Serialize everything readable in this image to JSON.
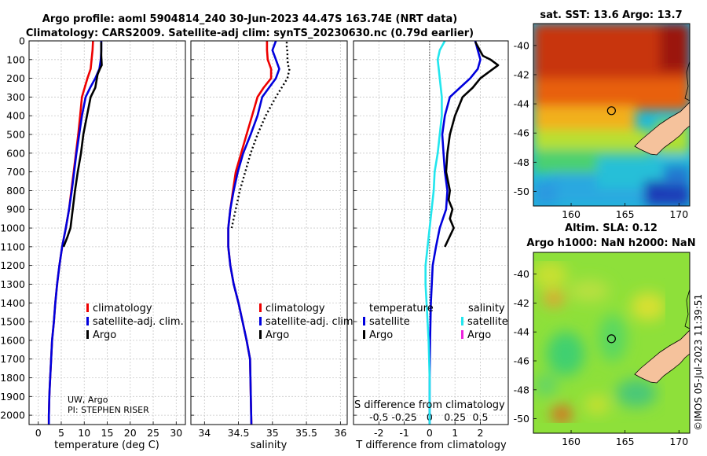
{
  "header": {
    "title_line1": "Argo profile: aoml 5904814_240 30-Jun-2023 44.47S 163.74E (NRT data)",
    "title_line2": "Climatology: CARS2009. Satellite-adj clim: synTS_20230630.nc (0.79d earlier)"
  },
  "colors": {
    "climatology": "#ee0000",
    "satellite_adj": "#0000dd",
    "argo": "#000000",
    "s_satellite": "#22e6ee",
    "s_argo": "#ee22dd"
  },
  "attribution": {
    "line1": "UW, Argo",
    "line2": "PI: STEPHEN RISER"
  },
  "timestamp": "©IMOS 05-Jul-2023 11:39:51",
  "depth_ticks": [
    "0",
    "100",
    "200",
    "300",
    "400",
    "500",
    "600",
    "700",
    "800",
    "900",
    "1000",
    "1100",
    "1200",
    "1300",
    "1400",
    "1500",
    "1600",
    "1700",
    "1800",
    "1900",
    "2000"
  ],
  "chart_data": [
    {
      "id": "temperature-profile",
      "type": "line",
      "xlabel": "temperature (deg C)",
      "ylabel": "depth",
      "xlim": [
        -2,
        32
      ],
      "ylim": [
        2050,
        0
      ],
      "xticks": [
        0,
        5,
        10,
        15,
        20,
        25,
        30
      ],
      "xtick_labels": [
        "0",
        "5",
        "10",
        "15",
        "20",
        "25",
        "30"
      ],
      "legend": [
        "climatology",
        "satellite-adj. clim.",
        "Argo"
      ],
      "series": [
        {
          "name": "climatology",
          "color": "#ee0000",
          "style": "solid",
          "x": [
            11.9,
            11.8,
            11.6,
            11.4,
            10.7,
            10.1,
            9.5,
            9.1,
            8.7,
            8.2,
            7.7,
            7.2,
            6.7,
            6.0,
            5.2,
            4.6,
            4.1,
            3.7,
            3.4,
            3.0,
            2.8,
            2.6,
            2.5,
            2.4,
            2.3,
            2.3
          ],
          "y": [
            0,
            50,
            100,
            150,
            200,
            250,
            300,
            400,
            500,
            600,
            700,
            800,
            900,
            1000,
            1100,
            1200,
            1300,
            1400,
            1500,
            1600,
            1700,
            1800,
            1850,
            1900,
            2000,
            2050
          ]
        },
        {
          "name": "satellite-adj. clim.",
          "color": "#0000dd",
          "style": "solid",
          "x": [
            13.7,
            13.7,
            13.6,
            13.3,
            12.4,
            11.3,
            10.3,
            9.5,
            8.9,
            8.3,
            7.8,
            7.3,
            6.7,
            6.0,
            5.2,
            4.6,
            4.1,
            3.7,
            3.4,
            3.0,
            2.8,
            2.6,
            2.5,
            2.4,
            2.3,
            2.3
          ],
          "y": [
            0,
            50,
            100,
            150,
            200,
            250,
            300,
            400,
            500,
            600,
            700,
            800,
            900,
            1000,
            1100,
            1200,
            1300,
            1400,
            1500,
            1600,
            1700,
            1800,
            1850,
            1900,
            2000,
            2050
          ]
        },
        {
          "name": "Argo",
          "color": "#000000",
          "style": "solid",
          "x": [
            13.7,
            13.7,
            13.7,
            13.8,
            13.4,
            12.9,
            12.4,
            11.4,
            10.6,
            9.8,
            9.3,
            8.6,
            8.0,
            7.5,
            7.0,
            6.3,
            5.5
          ],
          "y": [
            5,
            30,
            80,
            130,
            150,
            180,
            250,
            300,
            400,
            500,
            600,
            700,
            800,
            900,
            1000,
            1050,
            1100
          ]
        }
      ]
    },
    {
      "id": "salinity-profile",
      "type": "line",
      "xlabel": "salinity",
      "ylabel": "depth",
      "xlim": [
        33.8,
        36.1
      ],
      "ylim": [
        2050,
        0
      ],
      "xticks": [
        34,
        34.5,
        35,
        35.5,
        36
      ],
      "xtick_labels": [
        "34",
        "34.5",
        "35",
        "35.5",
        "36"
      ],
      "legend": [
        "climatology",
        "satellite-adj. clim.",
        "Argo"
      ],
      "series": [
        {
          "name": "climatology",
          "color": "#ee0000",
          "style": "solid",
          "x": [
            34.92,
            34.92,
            34.93,
            34.98,
            34.98,
            34.87,
            34.78,
            34.7,
            34.62,
            34.54,
            34.46,
            34.42,
            34.38,
            34.35,
            34.35,
            34.38,
            34.43,
            34.5,
            34.56,
            34.62,
            34.67,
            34.69
          ],
          "y": [
            0,
            50,
            100,
            150,
            200,
            250,
            300,
            400,
            500,
            600,
            700,
            800,
            900,
            1000,
            1100,
            1200,
            1300,
            1400,
            1500,
            1600,
            1700,
            2050
          ]
        },
        {
          "name": "satellite-adj. clim.",
          "color": "#0000dd",
          "style": "solid",
          "x": [
            35.05,
            35.0,
            35.05,
            35.1,
            35.05,
            34.95,
            34.85,
            34.78,
            34.68,
            34.57,
            34.49,
            34.43,
            34.38,
            34.35,
            34.35,
            34.38,
            34.43,
            34.5,
            34.56,
            34.62,
            34.67,
            34.69
          ],
          "y": [
            0,
            50,
            100,
            150,
            200,
            250,
            300,
            400,
            500,
            600,
            700,
            800,
            900,
            1000,
            1100,
            1200,
            1300,
            1400,
            1500,
            1600,
            1700,
            2050
          ]
        },
        {
          "name": "Argo",
          "color": "#000000",
          "style": "dotted",
          "x": [
            35.21,
            35.21,
            35.22,
            35.22,
            35.23,
            35.25,
            35.22,
            35.05,
            34.9,
            34.78,
            34.68,
            34.6,
            34.52,
            34.46,
            34.4
          ],
          "y": [
            5,
            30,
            60,
            100,
            130,
            150,
            200,
            300,
            400,
            500,
            600,
            700,
            800,
            900,
            1000
          ]
        }
      ]
    },
    {
      "id": "difference-profile",
      "type": "line",
      "xlabel": "T difference from climatology",
      "xlabel_top": "S difference from climatology",
      "ylabel": "depth",
      "xlim": [
        -3,
        3.1
      ],
      "ylim": [
        2050,
        0
      ],
      "xticks": [
        -2,
        -1,
        0,
        1,
        2
      ],
      "xtick_labels": [
        "-2",
        "-1",
        "0",
        "1",
        "2"
      ],
      "s_xticks": [
        -0.5,
        -0.25,
        0,
        0.25,
        0.5
      ],
      "s_xtick_labels": [
        "-0.5",
        "-0.25",
        "0",
        "0.25",
        "0.5"
      ],
      "legend_header": [
        "temperature",
        "salinity"
      ],
      "legend": [
        "satellite",
        "Argo",
        "satellite",
        "Argo"
      ],
      "series": [
        {
          "name": "T satellite",
          "color": "#0000dd",
          "style": "solid",
          "x": [
            1.8,
            1.9,
            2.0,
            1.9,
            1.6,
            1.2,
            0.8,
            0.6,
            0.5,
            0.55,
            0.6,
            0.7,
            0.65,
            0.4,
            0.25,
            0.12,
            0.05,
            0.02,
            0.0,
            0.0
          ],
          "y": [
            0,
            50,
            100,
            150,
            200,
            250,
            300,
            400,
            500,
            600,
            700,
            800,
            900,
            1000,
            1100,
            1200,
            1400,
            1600,
            1800,
            2050
          ]
        },
        {
          "name": "T Argo",
          "color": "#000000",
          "style": "solid",
          "x": [
            1.8,
            1.9,
            2.1,
            2.4,
            2.7,
            2.5,
            2.0,
            1.7,
            1.3,
            1.0,
            0.8,
            0.7,
            0.65,
            0.8,
            0.75,
            0.9,
            0.8,
            0.95,
            0.6
          ],
          "y": [
            5,
            30,
            80,
            100,
            130,
            150,
            200,
            250,
            300,
            400,
            500,
            600,
            700,
            800,
            850,
            900,
            950,
            1000,
            1100
          ]
        },
        {
          "name": "S satellite",
          "color": "#22e6ee",
          "style": "solid",
          "x": [
            0.15,
            0.1,
            0.08,
            0.1,
            0.12,
            0.12,
            0.1,
            0.08,
            0.05,
            0.04,
            0.02,
            0.0,
            -0.02,
            -0.04,
            -0.04,
            -0.03,
            -0.02,
            -0.01,
            0.0,
            0.0
          ],
          "y": [
            0,
            50,
            100,
            200,
            300,
            400,
            500,
            600,
            700,
            800,
            900,
            1000,
            1100,
            1200,
            1300,
            1400,
            1500,
            1600,
            1800,
            2050
          ]
        },
        {
          "name": "S Argo",
          "color": "#ee22dd",
          "style": "solid",
          "x": [],
          "y": []
        }
      ]
    }
  ],
  "maps": [
    {
      "id": "sst-map",
      "title": "sat. SST: 13.6 Argo: 13.7",
      "x_ticks": [
        "160",
        "165",
        "170"
      ],
      "y_ticks": [
        "-40",
        "-42",
        "-44",
        "-46",
        "-48",
        "-50"
      ],
      "lon_range": [
        156.5,
        171
      ],
      "lat_range": [
        -51,
        -38.5
      ],
      "float_position": {
        "lon": 163.74,
        "lat": -44.47
      }
    },
    {
      "id": "sla-map",
      "title_line1": "Altim. SLA: 0.12",
      "title_line2": "Argo h1000: NaN h2000: NaN",
      "x_ticks": [
        "160",
        "165",
        "170"
      ],
      "y_ticks": [
        "-40",
        "-42",
        "-44",
        "-46",
        "-48",
        "-50"
      ],
      "lon_range": [
        156.5,
        171
      ],
      "lat_range": [
        -51,
        -38.5
      ],
      "float_position": {
        "lon": 163.74,
        "lat": -44.47
      }
    }
  ]
}
